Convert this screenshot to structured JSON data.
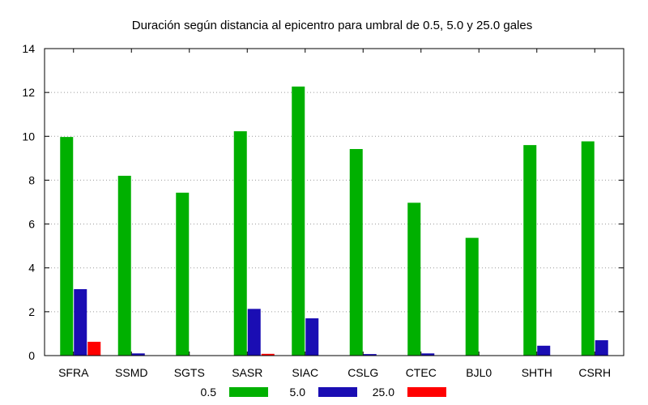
{
  "chart_data": {
    "type": "bar",
    "title": "Duración según distancia al epicentro para umbral de 0.5, 5.0 y 25.0 gales",
    "xlabel": "",
    "ylabel": "",
    "ylim": [
      0,
      14
    ],
    "yticks": [
      0,
      2,
      4,
      6,
      8,
      10,
      12,
      14
    ],
    "grid": true,
    "legend_position": "bottom",
    "categories": [
      "SFRA",
      "SSMD",
      "SGTS",
      "SASR",
      "SIAC",
      "CSLG",
      "CTEC",
      "BJL0",
      "SHTH",
      "CSRH"
    ],
    "series": [
      {
        "name": "0.5",
        "color": "#00b000",
        "values": [
          0.0,
          0.0,
          0.0,
          0.0,
          0.0,
          0.0,
          0.0,
          0.0,
          0.0,
          0.0
        ]
      },
      {
        "name": "5.0",
        "color": "#00b000",
        "values": [
          9.97,
          8.2,
          7.43,
          10.23,
          12.27,
          9.42,
          6.97,
          5.37,
          9.6,
          9.77
        ]
      },
      {
        "name": "25.0",
        "color": "#1a0db3",
        "values": [
          3.03,
          0.1,
          0.0,
          2.13,
          1.7,
          0.07,
          0.1,
          0.0,
          0.45,
          0.7
        ]
      },
      {
        "name": "",
        "color": "#ff0000",
        "values": [
          0.63,
          0.0,
          0.0,
          0.08,
          0.0,
          0.0,
          0.0,
          0.0,
          0.0,
          0.0
        ]
      }
    ]
  }
}
